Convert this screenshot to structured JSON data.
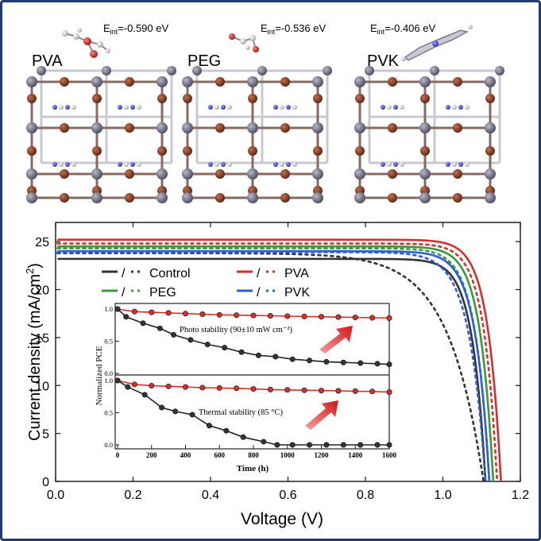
{
  "structures": [
    {
      "name": "PVA",
      "energy_label": "E",
      "energy_sub": "int",
      "energy_value": "=-0.590 eV"
    },
    {
      "name": "PEG",
      "energy_label": "E",
      "energy_sub": "int",
      "energy_value": "=-0.536 eV"
    },
    {
      "name": "PVK",
      "energy_label": "E",
      "energy_sub": "int",
      "energy_value": "=-0.406 eV"
    }
  ],
  "chart_data": [
    {
      "type": "line",
      "title": "",
      "xlabel": "Voltage (V)",
      "ylabel": "Current density (mA/cm²)",
      "ylabel_parts": {
        "main": "Current density (mA/cm",
        "sup": "2",
        "end": ")"
      },
      "xlim": [
        0.0,
        1.2
      ],
      "ylim": [
        0,
        27
      ],
      "xticks": [
        "0.0",
        "0.2",
        "0.4",
        "0.6",
        "0.8",
        "1.0",
        "1.2"
      ],
      "yticks": [
        "0",
        "5",
        "10",
        "15",
        "20",
        "25"
      ],
      "legend": [
        {
          "label": "Control",
          "color": "#333333"
        },
        {
          "label": "PVA",
          "color": "#d0312d"
        },
        {
          "label": "PEG",
          "color": "#3a9a3a"
        },
        {
          "label": "PVK",
          "color": "#2c5fd6"
        }
      ],
      "legend_separator": "/",
      "series": [
        {
          "name": "Control (solid)",
          "color": "#333333",
          "style": "solid",
          "jsc": 23.2,
          "voc": 1.11,
          "b": 0.034
        },
        {
          "name": "Control (dotted)",
          "color": "#333333",
          "style": "dotted",
          "jsc": 23.8,
          "voc": 1.105,
          "b": 0.09
        },
        {
          "name": "PVA (solid)",
          "color": "#d0312d",
          "style": "solid",
          "jsc": 25.2,
          "voc": 1.15,
          "b": 0.034
        },
        {
          "name": "PVA (dotted)",
          "color": "#d0312d",
          "style": "dotted",
          "jsc": 24.8,
          "voc": 1.14,
          "b": 0.034
        },
        {
          "name": "PEG (solid)",
          "color": "#3a9a3a",
          "style": "solid",
          "jsc": 24.5,
          "voc": 1.13,
          "b": 0.034
        },
        {
          "name": "PEG (dotted)",
          "color": "#3a9a3a",
          "style": "dotted",
          "jsc": 24.3,
          "voc": 1.12,
          "b": 0.036
        },
        {
          "name": "PVK (solid)",
          "color": "#2c5fd6",
          "style": "solid",
          "jsc": 24.0,
          "voc": 1.12,
          "b": 0.036
        },
        {
          "name": "PVK (dotted)",
          "color": "#2c5fd6",
          "style": "dotted",
          "jsc": 23.9,
          "voc": 1.11,
          "b": 0.042
        }
      ]
    },
    {
      "type": "line",
      "panel": "inset-top",
      "annotation": "Photo stability (90±10 mW cm⁻²)",
      "xlim": [
        0,
        1600
      ],
      "ylim": [
        0.0,
        1.05
      ],
      "yticks": [
        "0.0",
        "0.5",
        "1.0"
      ],
      "series": [
        {
          "name": "treated",
          "color": "#d0312d",
          "x": [
            0,
            100,
            200,
            300,
            400,
            500,
            600,
            700,
            800,
            900,
            1000,
            1100,
            1200,
            1300,
            1400,
            1500,
            1600
          ],
          "y": [
            1.0,
            0.96,
            0.95,
            0.94,
            0.93,
            0.92,
            0.91,
            0.905,
            0.9,
            0.895,
            0.89,
            0.885,
            0.88,
            0.875,
            0.87,
            0.865,
            0.86
          ]
        },
        {
          "name": "control",
          "color": "#222222",
          "x": [
            0,
            50,
            150,
            250,
            330,
            430,
            530,
            630,
            730,
            830,
            930,
            1030,
            1130,
            1230,
            1330,
            1430,
            1530,
            1600
          ],
          "y": [
            1.0,
            0.88,
            0.78,
            0.7,
            0.6,
            0.52,
            0.45,
            0.4,
            0.33,
            0.28,
            0.26,
            0.22,
            0.2,
            0.18,
            0.17,
            0.16,
            0.15,
            0.14
          ]
        }
      ]
    },
    {
      "type": "line",
      "panel": "inset-bottom",
      "annotation": "Thermal stability (85 °C)",
      "xlabel": "Time (h)",
      "ylabel": "Normalized PCE",
      "xlim": [
        0,
        1600
      ],
      "ylim": [
        0.0,
        1.05
      ],
      "xticks": [
        "0",
        "200",
        "400",
        "600",
        "800",
        "1000",
        "1200",
        "1400",
        "1600"
      ],
      "yticks": [
        "0.0",
        "0.5",
        "1.0"
      ],
      "series": [
        {
          "name": "treated",
          "color": "#d0312d",
          "x": [
            0,
            100,
            200,
            300,
            400,
            500,
            600,
            700,
            800,
            900,
            1000,
            1100,
            1200,
            1300,
            1400,
            1500,
            1600
          ],
          "y": [
            1.0,
            0.94,
            0.92,
            0.91,
            0.9,
            0.89,
            0.885,
            0.88,
            0.87,
            0.86,
            0.855,
            0.85,
            0.845,
            0.84,
            0.835,
            0.83,
            0.82
          ]
        },
        {
          "name": "control",
          "color": "#222222",
          "x": [
            0,
            60,
            160,
            260,
            340,
            440,
            540,
            640,
            740,
            860,
            940,
            1030,
            1130,
            1230,
            1330,
            1430,
            1530,
            1600
          ],
          "y": [
            1.0,
            0.9,
            0.78,
            0.58,
            0.52,
            0.47,
            0.3,
            0.22,
            0.12,
            0.05,
            0.0,
            0.0,
            0.0,
            0.0,
            0.0,
            0.0,
            0.0,
            0.0
          ]
        }
      ]
    }
  ]
}
